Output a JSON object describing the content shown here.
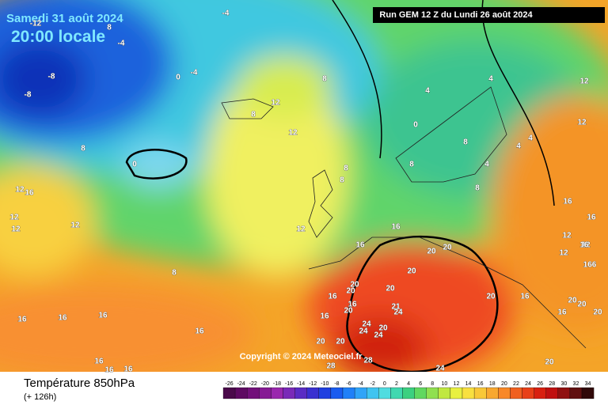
{
  "header": {
    "date": "Samedi 31 août 2024",
    "time": "20:00 locale",
    "run": "Run GEM 12 Z du Lundi 26 août 2024"
  },
  "copyright": "Copyright © 2024 Meteociel.fr",
  "footer": {
    "title": "Température 850hPa",
    "lead": "(+ 126h)"
  },
  "legend": {
    "ticks": [
      -26,
      -24,
      -22,
      -20,
      -18,
      -16,
      -14,
      -12,
      -10,
      -8,
      -6,
      -4,
      -2,
      0,
      2,
      4,
      6,
      8,
      10,
      12,
      14,
      16,
      18,
      20,
      22,
      24,
      26,
      28,
      30,
      32,
      34
    ],
    "colors": [
      "#4a0a4a",
      "#5e0a62",
      "#72107a",
      "#861a94",
      "#9a28ae",
      "#7a2ab8",
      "#5a2cc4",
      "#3a30d0",
      "#2040e0",
      "#1a5cf0",
      "#2080f8",
      "#30a4f8",
      "#40c4f0",
      "#50dce0",
      "#40d8b0",
      "#3cd080",
      "#60d860",
      "#90e050",
      "#c0e840",
      "#e8f040",
      "#f8e040",
      "#f8c838",
      "#f8a830",
      "#f88828",
      "#f06020",
      "#e84018",
      "#d82010",
      "#c01010",
      "#901010",
      "#601010",
      "#300808"
    ]
  },
  "map": {
    "labels": [
      -4,
      -4,
      8,
      -12,
      -8,
      -8,
      -4,
      0,
      8,
      12,
      8,
      12,
      4,
      4,
      12,
      12,
      0,
      4,
      4,
      8,
      8,
      4,
      8,
      8,
      8,
      0,
      8,
      12,
      16,
      12,
      12,
      12,
      8,
      12,
      16,
      16,
      16,
      16,
      12,
      12,
      12,
      16,
      166,
      20,
      20,
      20,
      20,
      20,
      20,
      16,
      16,
      20,
      20,
      16,
      21,
      24,
      20,
      20,
      16,
      20,
      16,
      24,
      24,
      20,
      24,
      20,
      20,
      28,
      28,
      24,
      20,
      16,
      16,
      16,
      16,
      16,
      16,
      16
    ]
  }
}
